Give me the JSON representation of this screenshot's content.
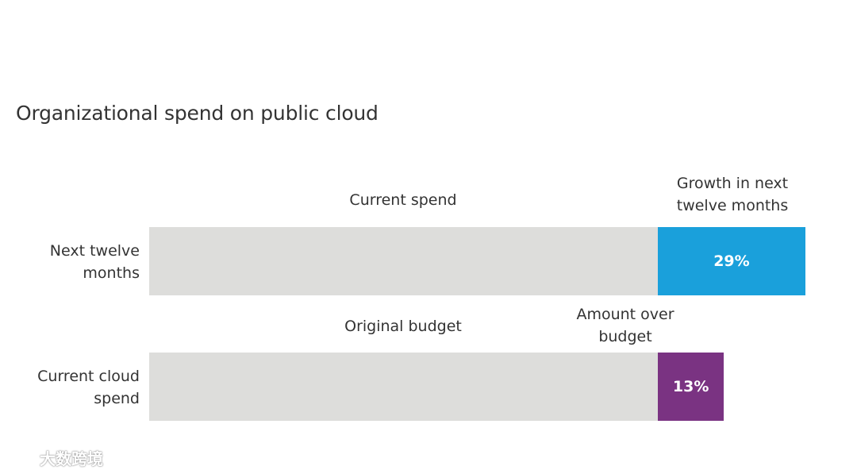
{
  "chart_data": {
    "type": "bar",
    "orientation": "horizontal-stacked",
    "title": "Organizational spend on public cloud",
    "categories": [
      "Next twelve months",
      "Current cloud spend"
    ],
    "rows": [
      {
        "label": "Next twelve months",
        "segments": [
          {
            "name": "Current spend",
            "value": 100,
            "value_label": "",
            "color": "#dddddb"
          },
          {
            "name": "Growth in next twelve months",
            "value": 29,
            "value_label": "29%",
            "color": "#1aa0db"
          }
        ]
      },
      {
        "label": "Current cloud spend",
        "segments": [
          {
            "name": "Original budget",
            "value": 100,
            "value_label": "",
            "color": "#dddddb"
          },
          {
            "name": "Amount over budget",
            "value": 13,
            "value_label": "13%",
            "color": "#7a3382"
          }
        ]
      }
    ],
    "xlabel": "",
    "ylabel": "",
    "grid": false
  },
  "watermark": {
    "text": "大数跨境"
  }
}
